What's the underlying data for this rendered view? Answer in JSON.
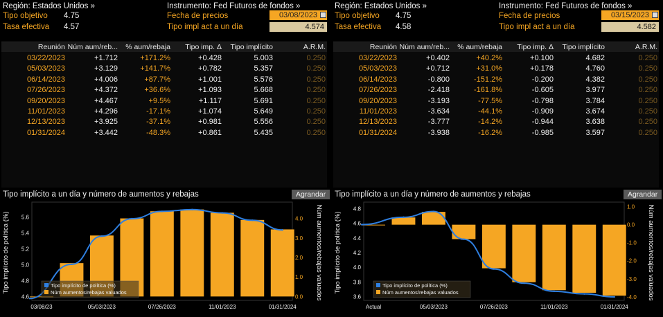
{
  "colors": {
    "accent": "#f5a623",
    "line": "#2f7fe0",
    "bar": "#f5a623"
  },
  "panels": [
    {
      "region_label": "Región: Estados Unidos »",
      "instrument_label": "Instrumento: Fed Futuros de fondos »",
      "target_label": "Tipo objetivo",
      "target_value": "4.75",
      "effective_label": "Tasa efectiva",
      "effective_value": "4.57",
      "price_date_label": "Fecha de precios",
      "price_date": "03/08/2023",
      "implied_label": "Tipo impl act a un día",
      "implied_value": "4.574",
      "columns": [
        "Reunión",
        "Núm aum/reb...",
        "% aum/rebaja",
        "Tipo imp. Δ",
        "Tipo implícito",
        "A.R.M."
      ],
      "rows": [
        [
          "03/22/2023",
          "+1.712",
          "+171.2%",
          "+0.428",
          "5.003",
          "0.250"
        ],
        [
          "05/03/2023",
          "+3.129",
          "+141.7%",
          "+0.782",
          "5.357",
          "0.250"
        ],
        [
          "06/14/2023",
          "+4.006",
          "+87.7%",
          "+1.001",
          "5.576",
          "0.250"
        ],
        [
          "07/26/2023",
          "+4.372",
          "+36.6%",
          "+1.093",
          "5.668",
          "0.250"
        ],
        [
          "09/20/2023",
          "+4.467",
          "+9.5%",
          "+1.117",
          "5.691",
          "0.250"
        ],
        [
          "11/01/2023",
          "+4.296",
          "-17.1%",
          "+1.074",
          "5.649",
          "0.250"
        ],
        [
          "12/13/2023",
          "+3.925",
          "-37.1%",
          "+0.981",
          "5.556",
          "0.250"
        ],
        [
          "01/31/2024",
          "+3.442",
          "-48.3%",
          "+0.861",
          "5.435",
          "0.250"
        ]
      ],
      "chart_title": "Tipo implícito a un día y número de aumentos y rebajas",
      "expand_label": "Agrandar",
      "chart_data": {
        "type": "bar",
        "categories": [
          "03/08/23",
          "03/22/2023",
          "05/03/2023",
          "06/14/2023",
          "07/26/2023",
          "09/20/2023",
          "11/01/2023",
          "12/13/2023",
          "01/31/2024"
        ],
        "x_tick_labels": [
          "03/08/23",
          "05/03/2023",
          "07/26/2023",
          "11/01/2023",
          "01/31/2024"
        ],
        "series": [
          {
            "name": "Tipo implícito de política (%)",
            "type": "line",
            "axis": "left",
            "values": [
              4.574,
              5.003,
              5.357,
              5.576,
              5.668,
              5.691,
              5.649,
              5.556,
              5.435
            ]
          },
          {
            "name": "Núm aumentos/rebajas valuados",
            "type": "bar",
            "axis": "right",
            "values": [
              0,
              1.712,
              3.129,
              4.006,
              4.372,
              4.467,
              4.296,
              3.925,
              3.442
            ]
          }
        ],
        "ylabel": "Tipo implícito de política (%)",
        "y2label": "Núm aumentos/rebajas valuados",
        "ylim": [
          4.55,
          5.75
        ],
        "y_ticks": [
          "4.6",
          "4.8",
          "5.0",
          "5.2",
          "5.4",
          "5.6"
        ],
        "y2lim": [
          -0.2,
          4.7
        ],
        "y2_ticks": [
          "0.0",
          "1.0",
          "2.0",
          "3.0",
          "4.0"
        ],
        "legend_position": "bottom-left"
      }
    },
    {
      "region_label": "Región: Estados Unidos »",
      "instrument_label": "Instrumento: Fed Futuros de fondos »",
      "target_label": "Tipo objetivo",
      "target_value": "4.75",
      "effective_label": "Tasa efectiva",
      "effective_value": "4.58",
      "price_date_label": "Fecha de precios",
      "price_date": "03/15/2023",
      "implied_label": "Tipo impl act a un día",
      "implied_value": "4.582",
      "columns": [
        "Reunión",
        "Núm aum/reb...",
        "% aum/rebaja",
        "Tipo imp. Δ",
        "Tipo implícito",
        "A.R.M."
      ],
      "rows": [
        [
          "03/22/2023",
          "+0.402",
          "+40.2%",
          "+0.100",
          "4.682",
          "0.250"
        ],
        [
          "05/03/2023",
          "+0.712",
          "+31.0%",
          "+0.178",
          "4.760",
          "0.250"
        ],
        [
          "06/14/2023",
          "-0.800",
          "-151.2%",
          "-0.200",
          "4.382",
          "0.250"
        ],
        [
          "07/26/2023",
          "-2.418",
          "-161.8%",
          "-0.605",
          "3.977",
          "0.250"
        ],
        [
          "09/20/2023",
          "-3.193",
          "-77.5%",
          "-0.798",
          "3.784",
          "0.250"
        ],
        [
          "11/01/2023",
          "-3.634",
          "-44.1%",
          "-0.909",
          "3.674",
          "0.250"
        ],
        [
          "12/13/2023",
          "-3.777",
          "-14.2%",
          "-0.944",
          "3.638",
          "0.250"
        ],
        [
          "01/31/2024",
          "-3.938",
          "-16.2%",
          "-0.985",
          "3.597",
          "0.250"
        ]
      ],
      "chart_title": "Tipo implícito a un día y número de aumentos y rebajas",
      "expand_label": "Agrandar",
      "chart_data": {
        "type": "bar",
        "categories": [
          "Actual",
          "03/22/2023",
          "05/03/2023",
          "06/14/2023",
          "07/26/2023",
          "09/20/2023",
          "11/01/2023",
          "12/13/2023",
          "01/31/2024"
        ],
        "x_tick_labels": [
          "Actual",
          "05/03/2023",
          "07/26/2023",
          "11/01/2023",
          "01/31/2024"
        ],
        "series": [
          {
            "name": "Tipo implícito de política (%)",
            "type": "line",
            "axis": "left",
            "values": [
              4.582,
              4.682,
              4.76,
              4.382,
              3.977,
              3.784,
              3.674,
              3.638,
              3.597
            ]
          },
          {
            "name": "Núm aumentos/rebajas valuados",
            "type": "bar",
            "axis": "right",
            "values": [
              0,
              0.402,
              0.712,
              -0.8,
              -2.418,
              -3.193,
              -3.634,
              -3.777,
              -3.938
            ]
          }
        ],
        "ylabel": "Tipo implícito de política (%)",
        "y2label": "Núm aumentos/rebajas valuados",
        "ylim": [
          3.55,
          4.85
        ],
        "y_ticks": [
          "3.6",
          "3.8",
          "4.0",
          "4.2",
          "4.4",
          "4.6",
          "4.8"
        ],
        "y2lim": [
          -4.2,
          1.1
        ],
        "y2_ticks": [
          "1.0",
          "0.0",
          "-1.0",
          "-2.0",
          "-3.0",
          "-4.0"
        ],
        "legend_position": "bottom-left"
      }
    }
  ]
}
